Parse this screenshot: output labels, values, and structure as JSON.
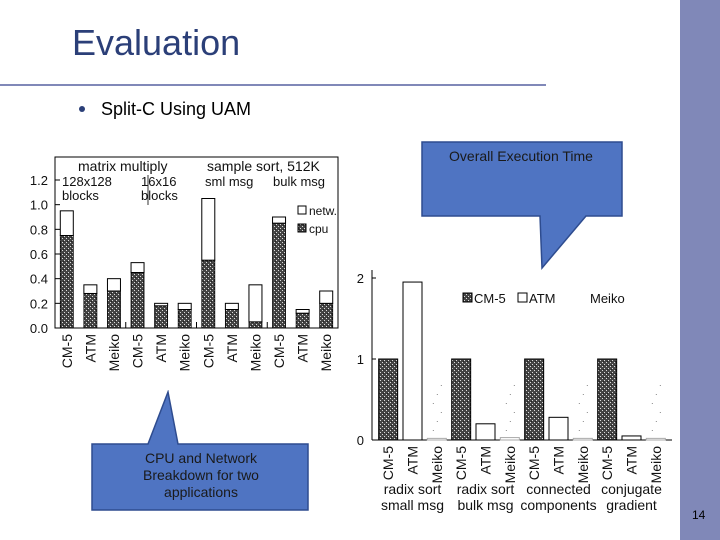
{
  "slide": {
    "title": "Evaluation",
    "bullet": "Split-C Using UAM",
    "page_number": "14",
    "accent_color": "#8088b8",
    "title_color": "#2b3f78",
    "callout_color": "#4f74c2"
  },
  "callouts": {
    "overall": "Overall Execution Time",
    "breakdown_line1": "CPU and Network",
    "breakdown_line2": "Breakdown for two",
    "breakdown_line3": "applications"
  },
  "chart_data": [
    {
      "type": "bar",
      "stacked": true,
      "group_labels": [
        "matrix multiply",
        "sample sort, 512K"
      ],
      "subgroup_labels": [
        "128x128 blocks",
        "16x16 blocks",
        "sml msg",
        "bulk msg"
      ],
      "subgroup_label_lines": [
        [
          "128x128",
          "blocks"
        ],
        [
          "16x16",
          "blocks"
        ],
        [
          "sml msg"
        ],
        [
          "bulk msg"
        ]
      ],
      "categories": [
        "CM-5",
        "ATM",
        "Meiko",
        "CM-5",
        "ATM",
        "Meiko",
        "CM-5",
        "ATM",
        "Meiko",
        "CM-5",
        "ATM",
        "Meiko"
      ],
      "series": [
        {
          "name": "cpu",
          "values": [
            0.75,
            0.28,
            0.3,
            0.45,
            0.18,
            0.15,
            0.55,
            0.15,
            0.05,
            0.85,
            0.12,
            0.2
          ]
        },
        {
          "name": "netw.",
          "values": [
            0.2,
            0.07,
            0.1,
            0.08,
            0.02,
            0.05,
            0.5,
            0.05,
            0.3,
            0.05,
            0.03,
            0.1
          ]
        }
      ],
      "ylim": [
        0,
        1.2
      ],
      "yticks": [
        "0.0",
        "0.2",
        "0.4",
        "0.6",
        "0.8",
        "1.0",
        "1.2"
      ],
      "legend": "right",
      "grid": false
    },
    {
      "type": "bar",
      "categories": [
        "CM-5",
        "ATM",
        "Meiko",
        "CM-5",
        "ATM",
        "Meiko",
        "CM-5",
        "ATM",
        "Meiko",
        "CM-5",
        "ATM",
        "Meiko"
      ],
      "group_label_lines": [
        [
          "radix sort",
          "small msg"
        ],
        [
          "radix sort",
          "bulk msg"
        ],
        [
          "connected",
          "components"
        ],
        [
          "conjugate",
          "gradient"
        ]
      ],
      "series": [
        {
          "name": "CM-5",
          "values": [
            1.0,
            null,
            null,
            1.0,
            null,
            null,
            1.0,
            null,
            null,
            1.0,
            null,
            null
          ]
        },
        {
          "name": "ATM",
          "values": [
            null,
            1.95,
            null,
            null,
            0.2,
            null,
            null,
            0.28,
            null,
            null,
            0.05,
            null
          ]
        },
        {
          "name": "Meiko",
          "values": [
            null,
            null,
            0.02,
            null,
            null,
            0.03,
            null,
            null,
            0.02,
            null,
            null,
            0.02
          ]
        }
      ],
      "ylim": [
        0,
        2
      ],
      "yticks": [
        "0",
        "1",
        "2"
      ],
      "legend": "top",
      "grid": false
    }
  ]
}
